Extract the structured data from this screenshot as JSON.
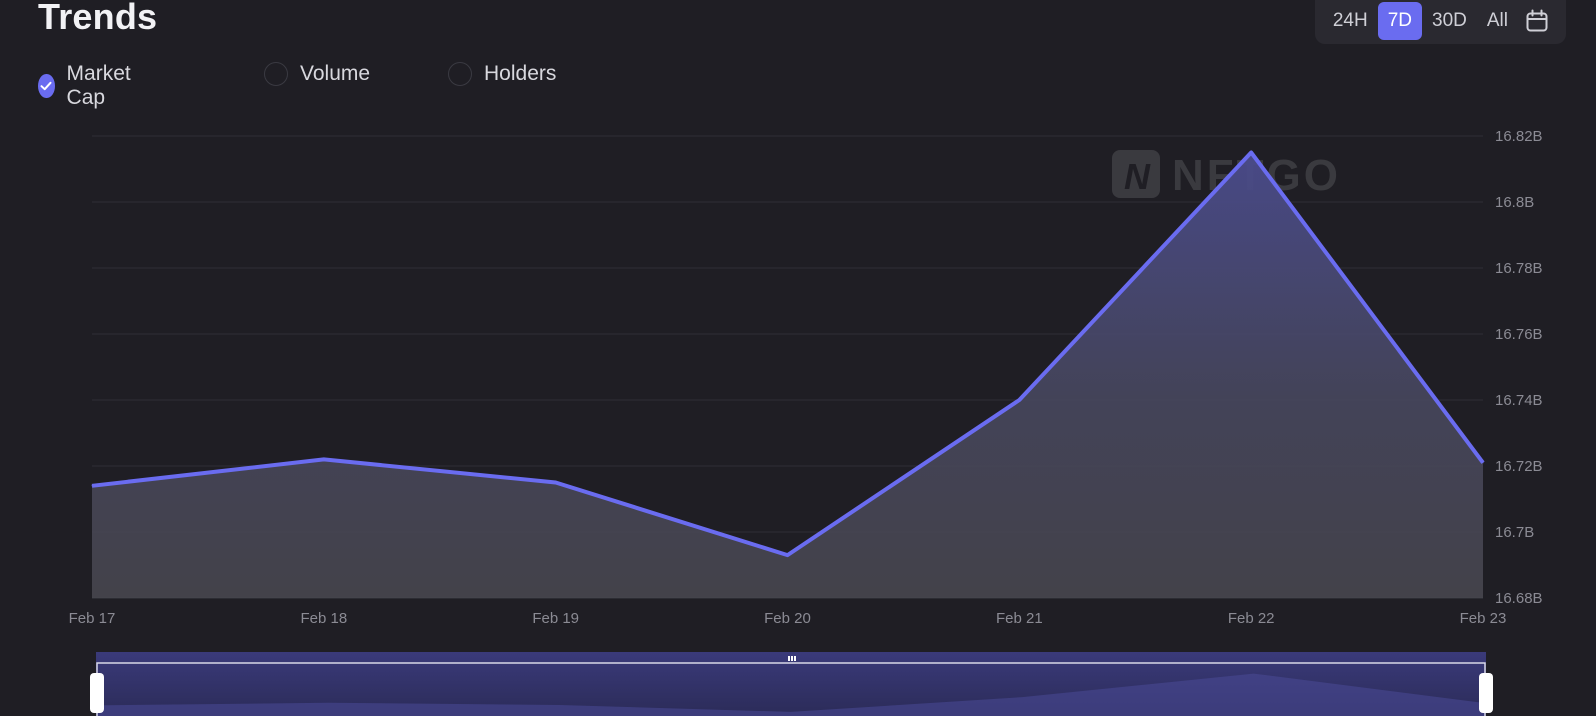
{
  "header": {
    "title": "Trends"
  },
  "legend": [
    {
      "label": "Market Cap",
      "checked": true
    },
    {
      "label": "Volume",
      "checked": false
    },
    {
      "label": "Holders",
      "checked": false
    }
  ],
  "range": {
    "options": [
      "24H",
      "7D",
      "30D",
      "All"
    ],
    "selected": "7D",
    "calendar_icon": "calendar-icon"
  },
  "watermark": "NFTGO",
  "colors": {
    "background": "#1f1e24",
    "line": "#6a6cf0",
    "grid": "#2f2f36",
    "accent": "#6a6cf0"
  },
  "chart_data": {
    "type": "area",
    "x": [
      "Feb 17",
      "Feb 18",
      "Feb 19",
      "Feb 20",
      "Feb 21",
      "Feb 22",
      "Feb 23"
    ],
    "series": [
      {
        "name": "Market Cap",
        "values": [
          16.714,
          16.722,
          16.715,
          16.693,
          16.74,
          16.815,
          16.721
        ]
      }
    ],
    "y_ticks": [
      "16.82B",
      "16.8B",
      "16.78B",
      "16.76B",
      "16.74B",
      "16.72B",
      "16.7B",
      "16.68B"
    ],
    "ylim": [
      16.68,
      16.82
    ],
    "y_axis_position": "right",
    "grid": true
  }
}
